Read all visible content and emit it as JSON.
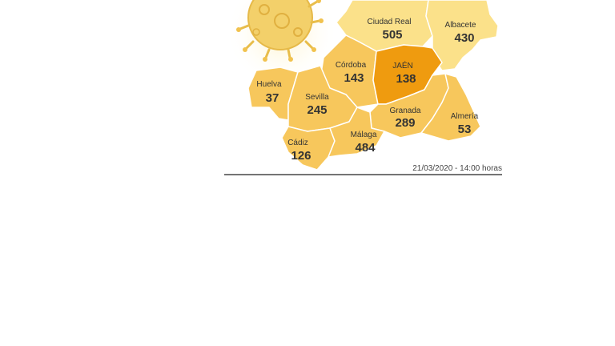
{
  "colors": {
    "default_fill": "#f7c75c",
    "light_fill": "#fbe18a",
    "highlight_fill": "#ef9b0f",
    "border": "#ffffff",
    "rule": "#222222",
    "virus": "#f3d06a"
  },
  "map": {
    "provinces": [
      {
        "name": "Ciudad Real",
        "value": "505"
      },
      {
        "name": "Albacete",
        "value": "430"
      },
      {
        "name": "Córdoba",
        "value": "143"
      },
      {
        "name": "JAÉN",
        "value": "138"
      },
      {
        "name": "Huelva",
        "value": "37"
      },
      {
        "name": "Sevilla",
        "value": "245"
      },
      {
        "name": "Granada",
        "value": "289"
      },
      {
        "name": "Almería",
        "value": "53"
      },
      {
        "name": "Cádiz",
        "value": "126"
      },
      {
        "name": "Málaga",
        "value": "484"
      }
    ],
    "icon": "virus-icon"
  },
  "footer": {
    "timestamp": "21/03/2020 - 14:00 horas"
  }
}
